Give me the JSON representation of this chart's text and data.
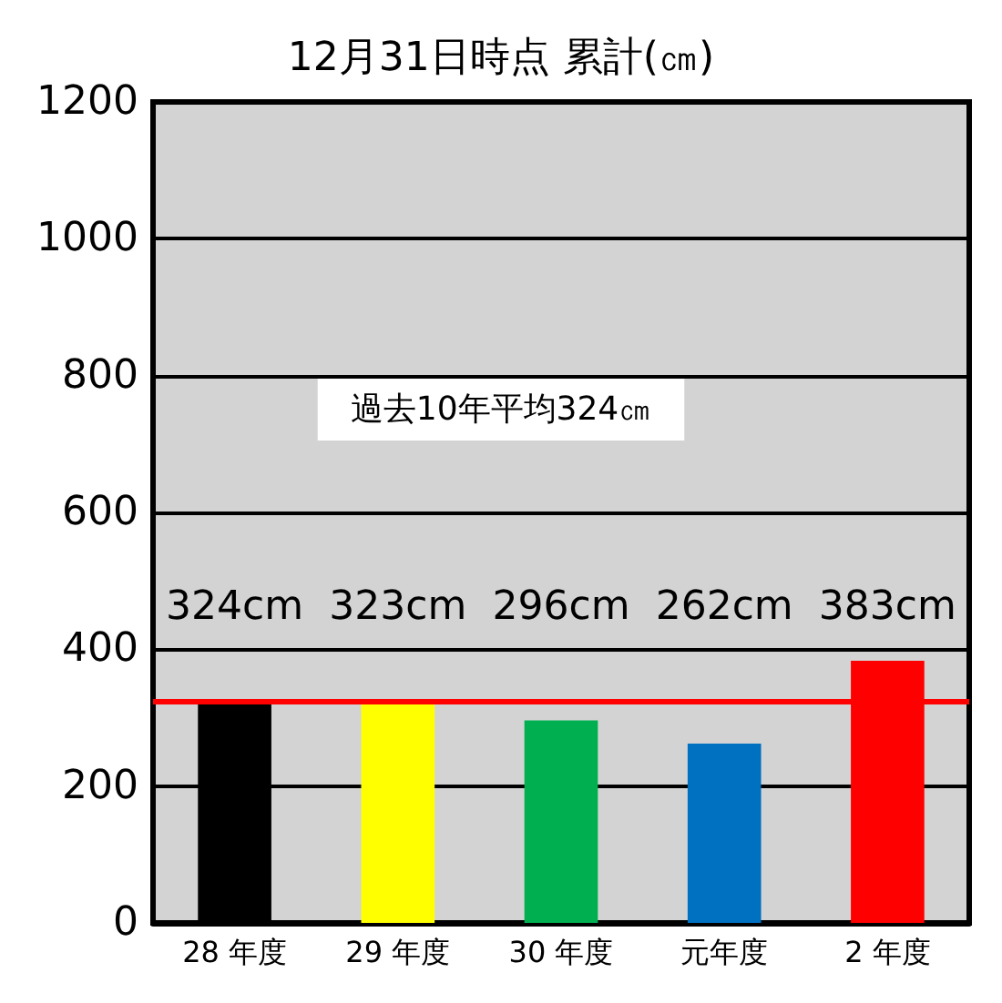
{
  "chart_data": {
    "type": "bar",
    "title": "12月31日時点 累計(㎝)",
    "categories": [
      "28 年度",
      "29 年度",
      "30 年度",
      "元年度",
      "2 年度"
    ],
    "values": [
      324,
      323,
      296,
      262,
      383
    ],
    "colors": [
      "#000000",
      "#ffff00",
      "#00b050",
      "#0070c0",
      "#ff0000"
    ],
    "value_labels": [
      "324cm",
      "323cm",
      "296cm",
      "262cm",
      "383cm"
    ],
    "ylim": [
      0,
      1200
    ],
    "yticks": [
      0,
      200,
      400,
      600,
      800,
      1000,
      1200
    ],
    "grid": "y",
    "ref_lines": [
      {
        "axis": "y",
        "value": 324,
        "color": "#ff0000",
        "line_style": "solid"
      }
    ],
    "annotations": [
      "過去10年平均324㎝"
    ]
  }
}
